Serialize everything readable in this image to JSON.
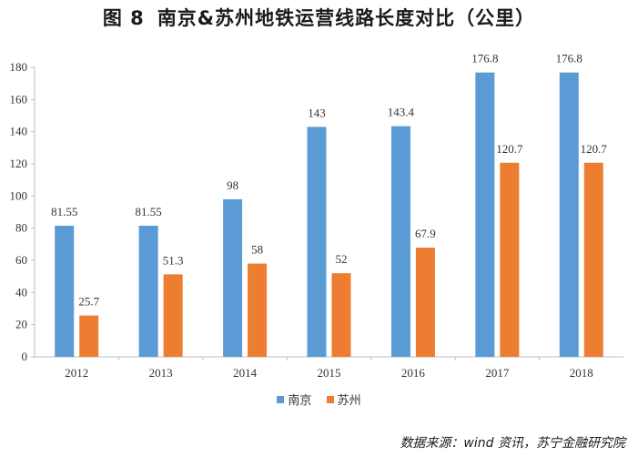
{
  "figure": {
    "label": "图 8",
    "title": "南京&苏州地铁运营线路长度对比（公里）",
    "source": "数据来源：wind 资讯，苏宁金融研究院"
  },
  "colors": {
    "nanjing": "#5b9bd5",
    "suzhou": "#ed7d31",
    "axis": "#bfbfbf"
  },
  "chart_data": {
    "type": "bar",
    "title": "南京&苏州地铁运营线路长度对比（公里）",
    "xlabel": "",
    "ylabel": "",
    "categories": [
      "2012",
      "2013",
      "2014",
      "2015",
      "2016",
      "2017",
      "2018"
    ],
    "series": [
      {
        "name": "南京",
        "values": [
          81.55,
          81.55,
          98,
          143,
          143.4,
          176.8,
          176.8
        ],
        "labels": [
          "81.55",
          "81.55",
          "98",
          "143",
          "143.4",
          "176.8",
          "176.8"
        ]
      },
      {
        "name": "苏州",
        "values": [
          25.7,
          51.3,
          58,
          52,
          67.9,
          120.7,
          120.7
        ],
        "labels": [
          "25.7",
          "51.3",
          "58",
          "52",
          "67.9",
          "120.7",
          "120.7"
        ]
      }
    ],
    "ylim": [
      0,
      180
    ],
    "yticks": [
      "0",
      "20",
      "40",
      "60",
      "80",
      "100",
      "120",
      "140",
      "160",
      "180"
    ],
    "grid": false,
    "legend_position": "bottom"
  }
}
